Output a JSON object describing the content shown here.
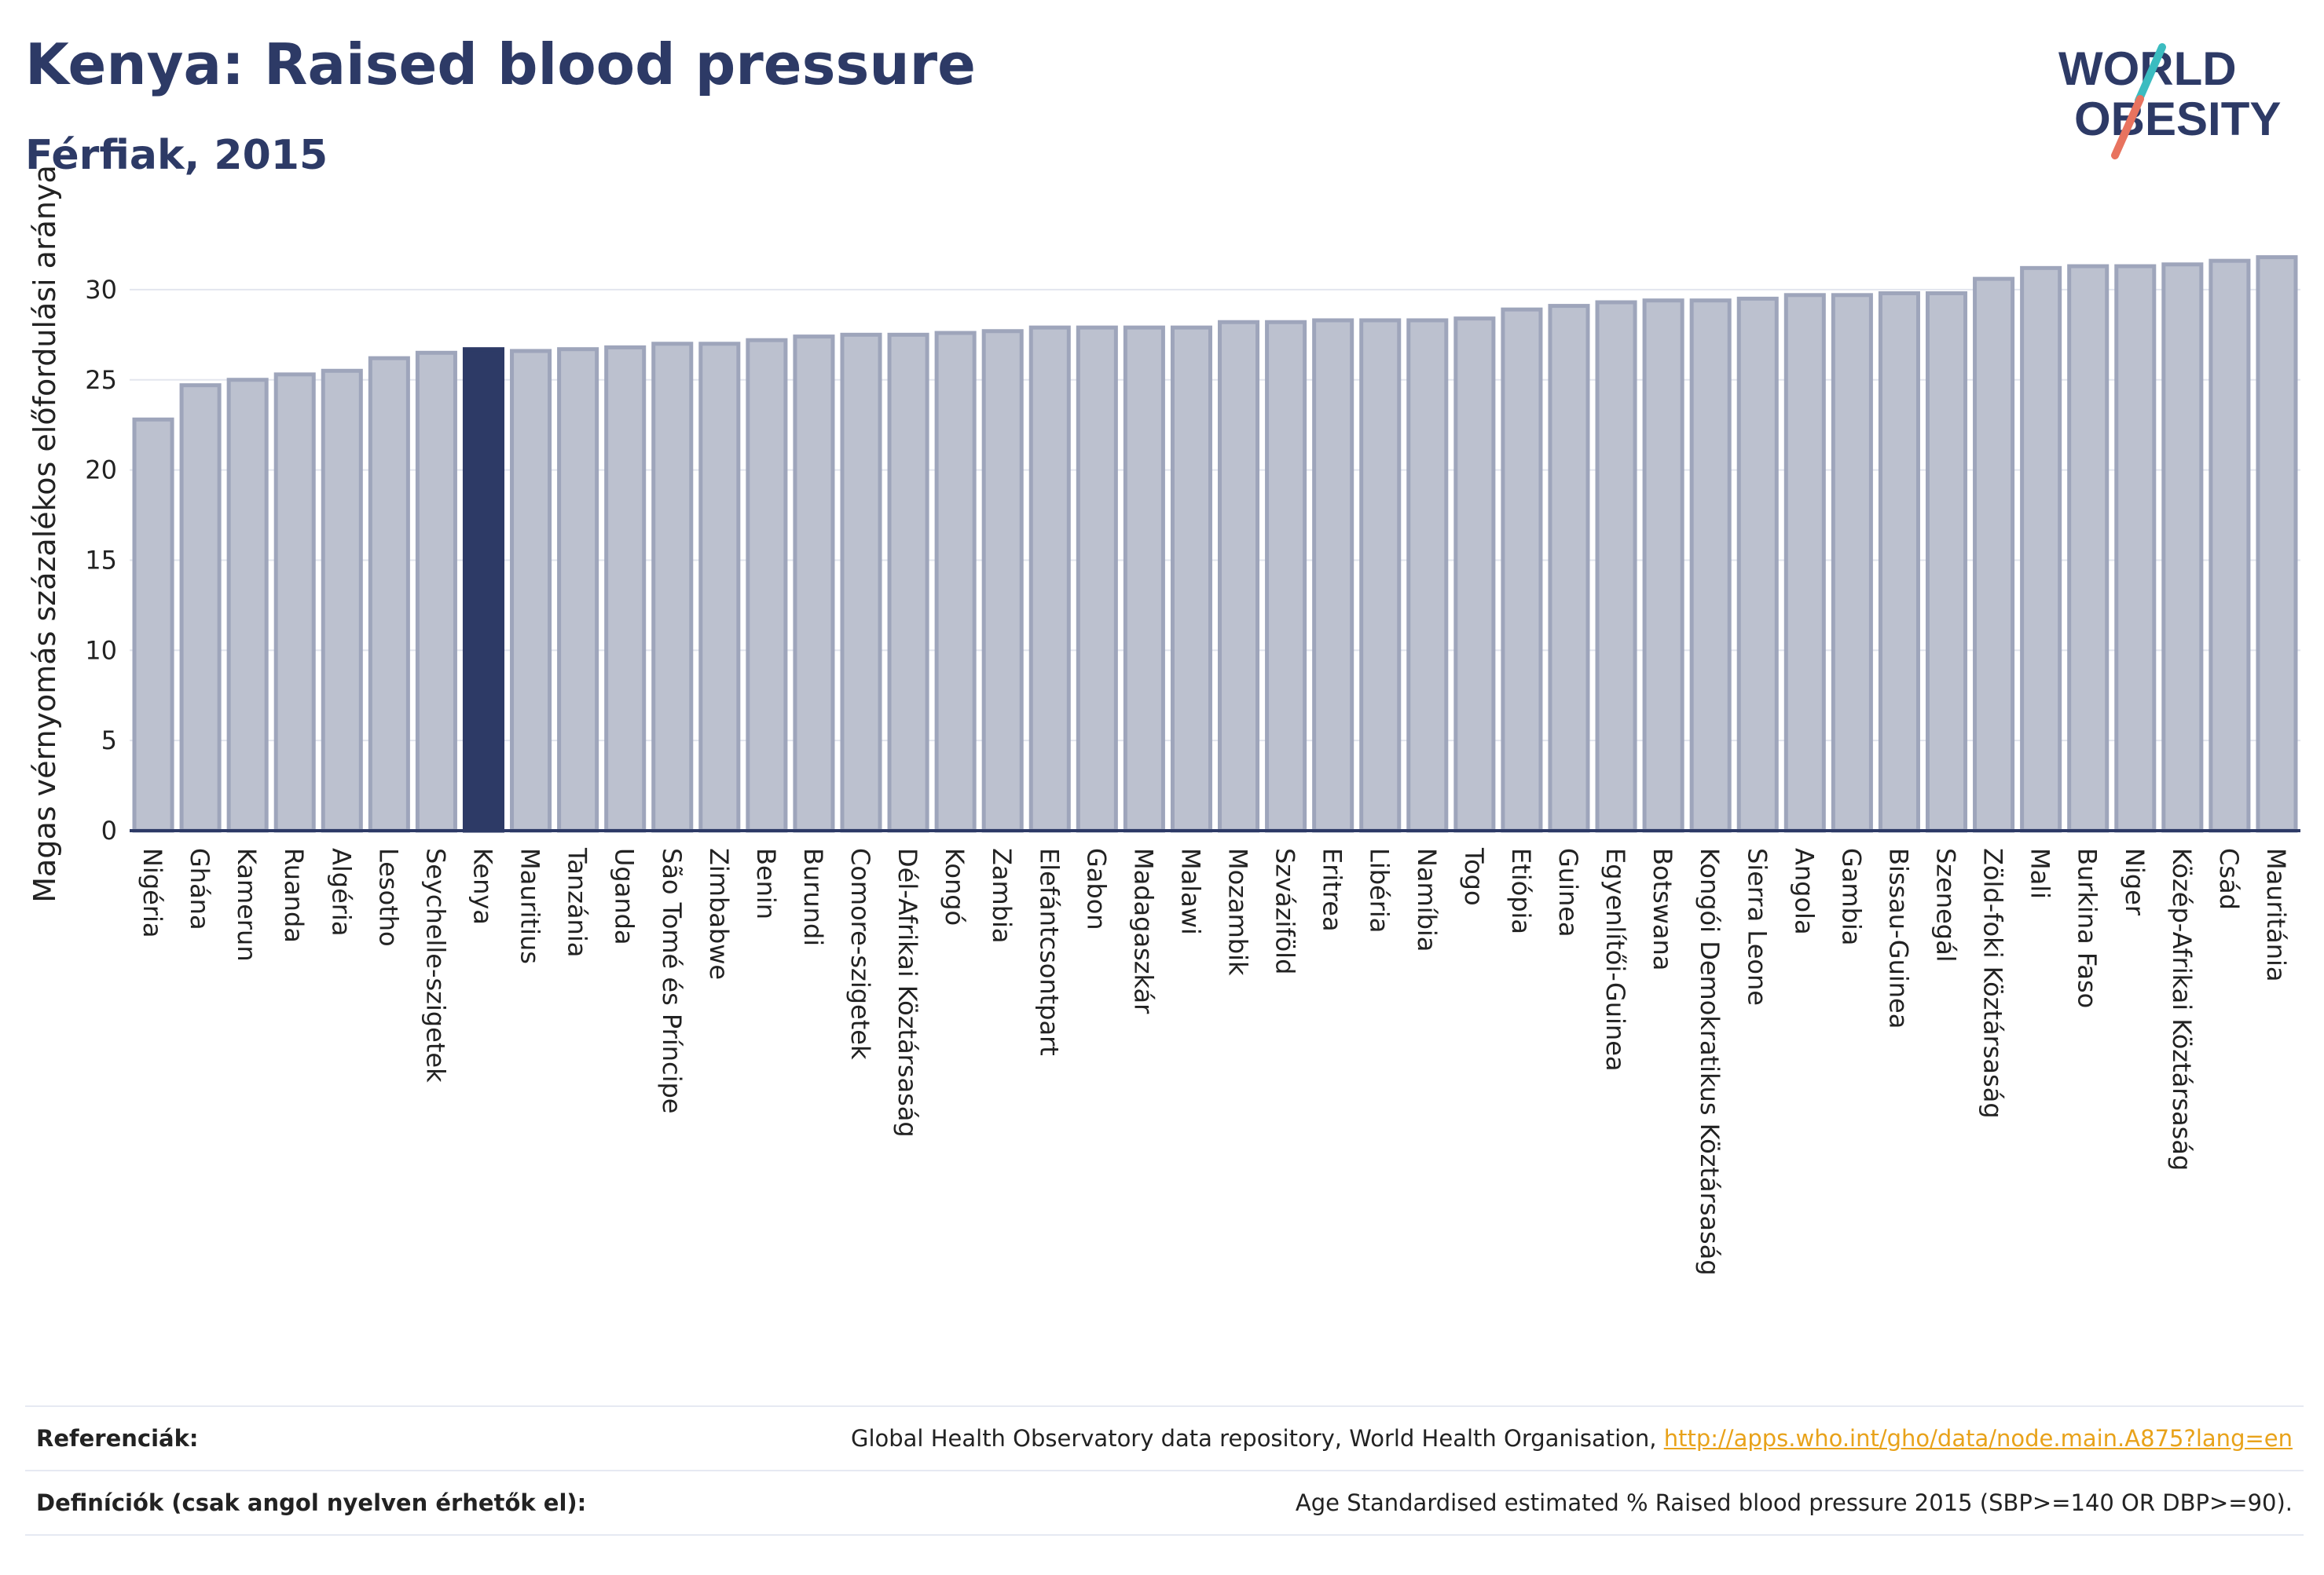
{
  "header": {
    "title": "Kenya: Raised blood pressure",
    "subtitle": "Férfiak, 2015"
  },
  "logo": {
    "line1": "WORLD",
    "line2": "OBESITY"
  },
  "colors": {
    "bar": "#bcc1cf",
    "bar_stroke": "#9ea5bb",
    "highlight": "#2d3a66",
    "title": "#2d3a66",
    "grid": "#e3e6ee",
    "axis": "#2d3a66",
    "logo_teal": "#3bbcc0",
    "logo_coral": "#e8735f",
    "link": "#e8a21a"
  },
  "chart_data": {
    "type": "bar",
    "ylabel": "Magas vérnyomás százalékos előfordulási aránya",
    "xlabel": "",
    "ylim": [
      0,
      33
    ],
    "yticks": [
      0,
      5,
      10,
      15,
      20,
      25,
      30
    ],
    "grid": true,
    "highlight": "Kenya",
    "categories": [
      "Nigéria",
      "Ghána",
      "Kamerun",
      "Ruanda",
      "Algéria",
      "Lesotho",
      "Seychelle-szigetek",
      "Kenya",
      "Mauritius",
      "Tanzánia",
      "Uganda",
      "São Tomé és Príncipe",
      "Zimbabwe",
      "Benin",
      "Burundi",
      "Comore-szigetek",
      "Dél-Afrikai Köztársaság",
      "Kongó",
      "Zambia",
      "Elefántcsontpart",
      "Gabon",
      "Madagaszkár",
      "Malawi",
      "Mozambik",
      "Szváziföld",
      "Eritrea",
      "Libéria",
      "Namíbia",
      "Togo",
      "Etiópia",
      "Guinea",
      "Egyenlítői-Guinea",
      "Botswana",
      "Kongói Demokratikus Köztársaság",
      "Sierra Leone",
      "Angola",
      "Gambia",
      "Bissau-Guinea",
      "Szenegál",
      "Zöld-foki Köztársaság",
      "Mali",
      "Burkina Faso",
      "Niger",
      "Közép-Afrikai Köztársaság",
      "Csád",
      "Mauritánia"
    ],
    "values": [
      22.8,
      24.7,
      25.0,
      25.3,
      25.5,
      26.2,
      26.5,
      26.7,
      26.6,
      26.7,
      26.8,
      27.0,
      27.0,
      27.2,
      27.4,
      27.5,
      27.5,
      27.6,
      27.7,
      27.9,
      27.9,
      27.9,
      27.9,
      28.2,
      28.2,
      28.3,
      28.3,
      28.3,
      28.4,
      28.9,
      29.1,
      29.3,
      29.4,
      29.4,
      29.5,
      29.7,
      29.7,
      29.8,
      29.8,
      30.6,
      31.2,
      31.3,
      31.3,
      31.4,
      31.6,
      31.8
    ]
  },
  "references": {
    "ref_label": "Referenciák:",
    "ref_text": "Global Health Observatory data repository, World Health Organisation, ",
    "ref_link": "http://apps.who.int/gho/data/node.main.A875?lang=en",
    "def_label": "Definíciók (csak angol nyelven érhetők el):",
    "def_text": "Age Standardised estimated % Raised blood pressure 2015 (SBP>=140 OR DBP>=90)."
  }
}
